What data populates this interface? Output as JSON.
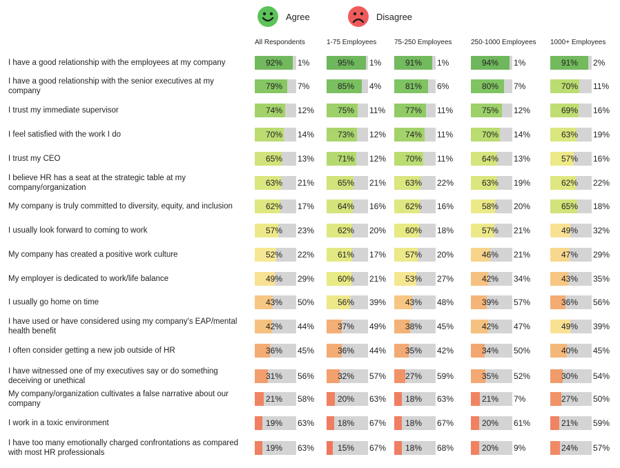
{
  "legend": {
    "agree": {
      "label": "Agree",
      "color": "#5cc35a",
      "icon": "happy-face-icon"
    },
    "disagree": {
      "label": "Disagree",
      "color": "#ef5b5b",
      "icon": "sad-face-icon"
    }
  },
  "chart_data": {
    "type": "bar",
    "categories": [
      "I have a good relationship with the employees at my company",
      "I have a good relationship with the senior executives at my company",
      "I trust my immediate supervisor",
      "I feel satisfied with the work I do",
      "I trust my CEO",
      "I believe HR has a seat at the strategic table at my company/organization",
      "My company is truly committed to diversity, equity, and inclusion",
      "I usually look forward to coming to work",
      "My company has created a positive work culture",
      "My employer is dedicated to work/life balance",
      "I usually go home on time",
      "I have used or have considered using my company's EAP/mental health benefit",
      "I often consider getting a new job outside of HR",
      "I have witnessed one of my executives say or do something deceiving or unethical",
      "My company/organization cultivates a false narrative about our company",
      "I work in a toxic environment",
      "I have too many emotionally charged confrontations as compared with most HR professionals"
    ],
    "groups": [
      {
        "name": "All Respondents",
        "agree": [
          92,
          79,
          74,
          70,
          65,
          63,
          62,
          57,
          52,
          49,
          43,
          42,
          36,
          31,
          21,
          19,
          19
        ],
        "disagree": [
          1,
          7,
          12,
          14,
          13,
          21,
          17,
          23,
          22,
          29,
          50,
          44,
          45,
          56,
          58,
          63,
          63
        ]
      },
      {
        "name": "1-75 Employees",
        "agree": [
          95,
          85,
          75,
          73,
          71,
          65,
          64,
          62,
          61,
          60,
          56,
          37,
          36,
          32,
          20,
          18,
          15
        ],
        "disagree": [
          1,
          4,
          11,
          12,
          12,
          21,
          16,
          20,
          17,
          21,
          39,
          49,
          44,
          57,
          63,
          67,
          67
        ]
      },
      {
        "name": "75-250 Employees",
        "agree": [
          91,
          81,
          77,
          74,
          70,
          63,
          62,
          60,
          57,
          53,
          43,
          38,
          35,
          27,
          18,
          18,
          18
        ],
        "disagree": [
          1,
          6,
          11,
          11,
          11,
          22,
          16,
          18,
          20,
          27,
          48,
          45,
          42,
          59,
          63,
          67,
          68
        ]
      },
      {
        "name": "250-1000 Employees",
        "agree": [
          94,
          80,
          75,
          70,
          64,
          63,
          58,
          57,
          46,
          42,
          39,
          42,
          34,
          35,
          21,
          20,
          20
        ],
        "disagree": [
          1,
          7,
          12,
          14,
          13,
          19,
          20,
          21,
          21,
          34,
          57,
          47,
          50,
          52,
          7,
          61,
          9
        ]
      },
      {
        "name": "1000+ Employees",
        "agree": [
          91,
          70,
          69,
          63,
          57,
          62,
          65,
          49,
          47,
          43,
          36,
          49,
          40,
          30,
          27,
          21,
          24
        ],
        "disagree": [
          2,
          11,
          16,
          19,
          16,
          22,
          18,
          32,
          29,
          35,
          56,
          39,
          45,
          54,
          50,
          59,
          57
        ]
      }
    ],
    "value_suffix": "%",
    "legend": "top-center"
  }
}
